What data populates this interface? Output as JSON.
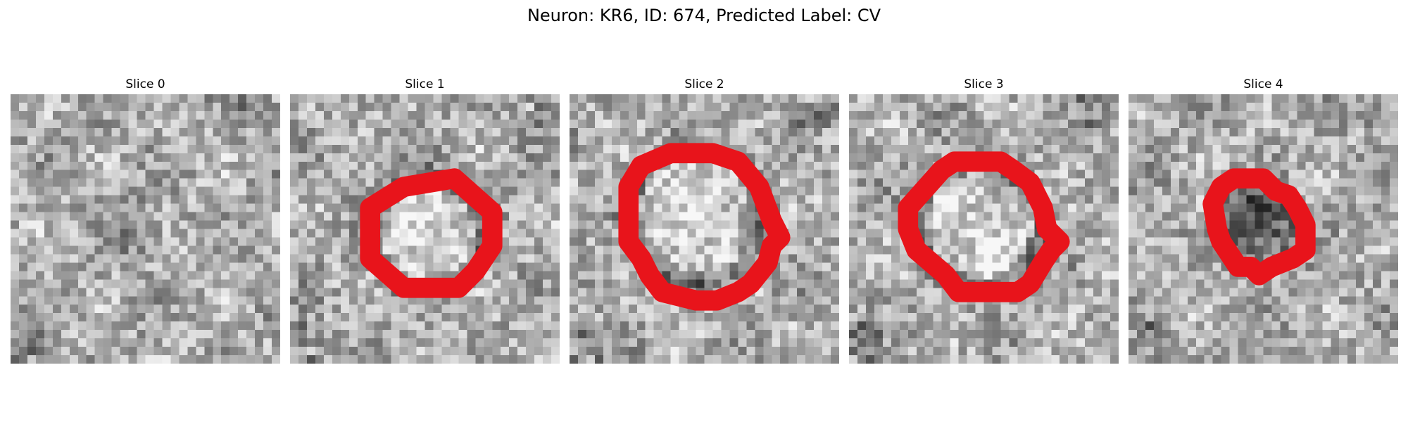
{
  "figure": {
    "title": "Neuron: KR6, ID: 674, Predicted Label: CV"
  },
  "panels": [
    {
      "title": "Slice 0",
      "seed": 11,
      "contour": false,
      "ring": null
    },
    {
      "title": "Slice 1",
      "seed": 23,
      "contour": true,
      "ring": {
        "cx": 16.5,
        "cy": 16.5,
        "r": 6.8
      }
    },
    {
      "title": "Slice 2",
      "seed": 37,
      "contour": true,
      "ring": {
        "cx": 15.0,
        "cy": 14.5,
        "r": 8.0
      }
    },
    {
      "title": "Slice 3",
      "seed": 41,
      "contour": true,
      "ring": {
        "cx": 15.5,
        "cy": 15.5,
        "r": 7.5
      }
    },
    {
      "title": "Slice 4",
      "seed": 53,
      "contour": true,
      "ring": {
        "cx": 15.0,
        "cy": 15.0,
        "r": 5.3
      }
    }
  ],
  "colors": {
    "contour": "#e8141b",
    "colormap": "grayscale"
  }
}
